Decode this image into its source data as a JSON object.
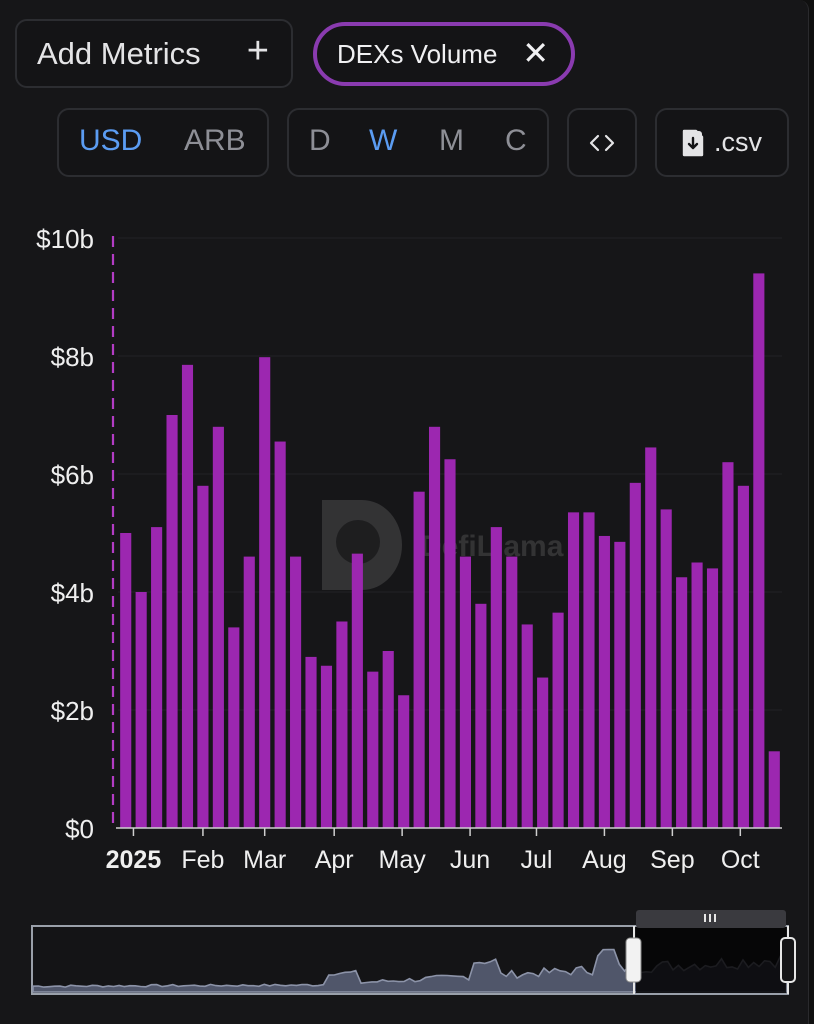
{
  "toolbar": {
    "add_metrics_label": "Add Metrics",
    "add_icon": "plus-icon",
    "metric_chip_label": "DEXs Volume",
    "metric_chip_close_icon": "close-icon",
    "currency_options": [
      "USD",
      "ARB"
    ],
    "currency_selected": "USD",
    "period_options": [
      "D",
      "W",
      "M",
      "C"
    ],
    "period_selected": "W",
    "embed_icon": "code-icon",
    "csv_label": ".csv",
    "csv_icon": "file-download-icon"
  },
  "watermark": "DefiLlama",
  "colors": {
    "bar": "#9c27b0",
    "accent_active": "#5b9cf2",
    "chip_border": "#8a3bb0",
    "background": "#161618",
    "brush_line": "#8c93a8"
  },
  "chart_data": {
    "type": "bar",
    "title": "",
    "xlabel": "",
    "ylabel": "",
    "y_tick_labels": [
      "$0",
      "$2b",
      "$4b",
      "$6b",
      "$8b",
      "$10b"
    ],
    "ylim": [
      0,
      10
    ],
    "y_unit": "billion USD",
    "x_tick_labels": [
      "2025",
      "Feb",
      "Mar",
      "Apr",
      "May",
      "Jun",
      "Jul",
      "Aug",
      "Sep",
      "Oct"
    ],
    "x_tick_bar_index": [
      0.5,
      5.0,
      9.0,
      13.5,
      17.9,
      22.3,
      26.6,
      31.0,
      35.4,
      39.8
    ],
    "grid": true,
    "legend": "none",
    "series": [
      {
        "values": [
          5.0,
          4.0,
          5.1,
          7.0,
          7.85,
          5.8,
          6.8,
          3.4,
          4.6,
          7.98,
          6.55,
          4.6,
          2.9,
          2.75,
          3.5,
          4.65,
          2.65,
          3.0,
          2.25,
          5.7,
          6.8,
          6.25,
          4.6,
          3.8,
          5.1,
          4.6,
          3.45,
          2.55,
          3.65,
          5.35,
          5.35,
          4.95,
          4.85,
          5.85,
          6.45,
          5.4,
          4.25,
          4.5,
          4.4,
          6.2,
          5.8,
          9.4,
          1.3
        ]
      }
    ]
  },
  "navigator": {
    "grip_icon": "grip-icon",
    "selection_start_fraction": 0.77,
    "selection_end_fraction": 1.0
  }
}
